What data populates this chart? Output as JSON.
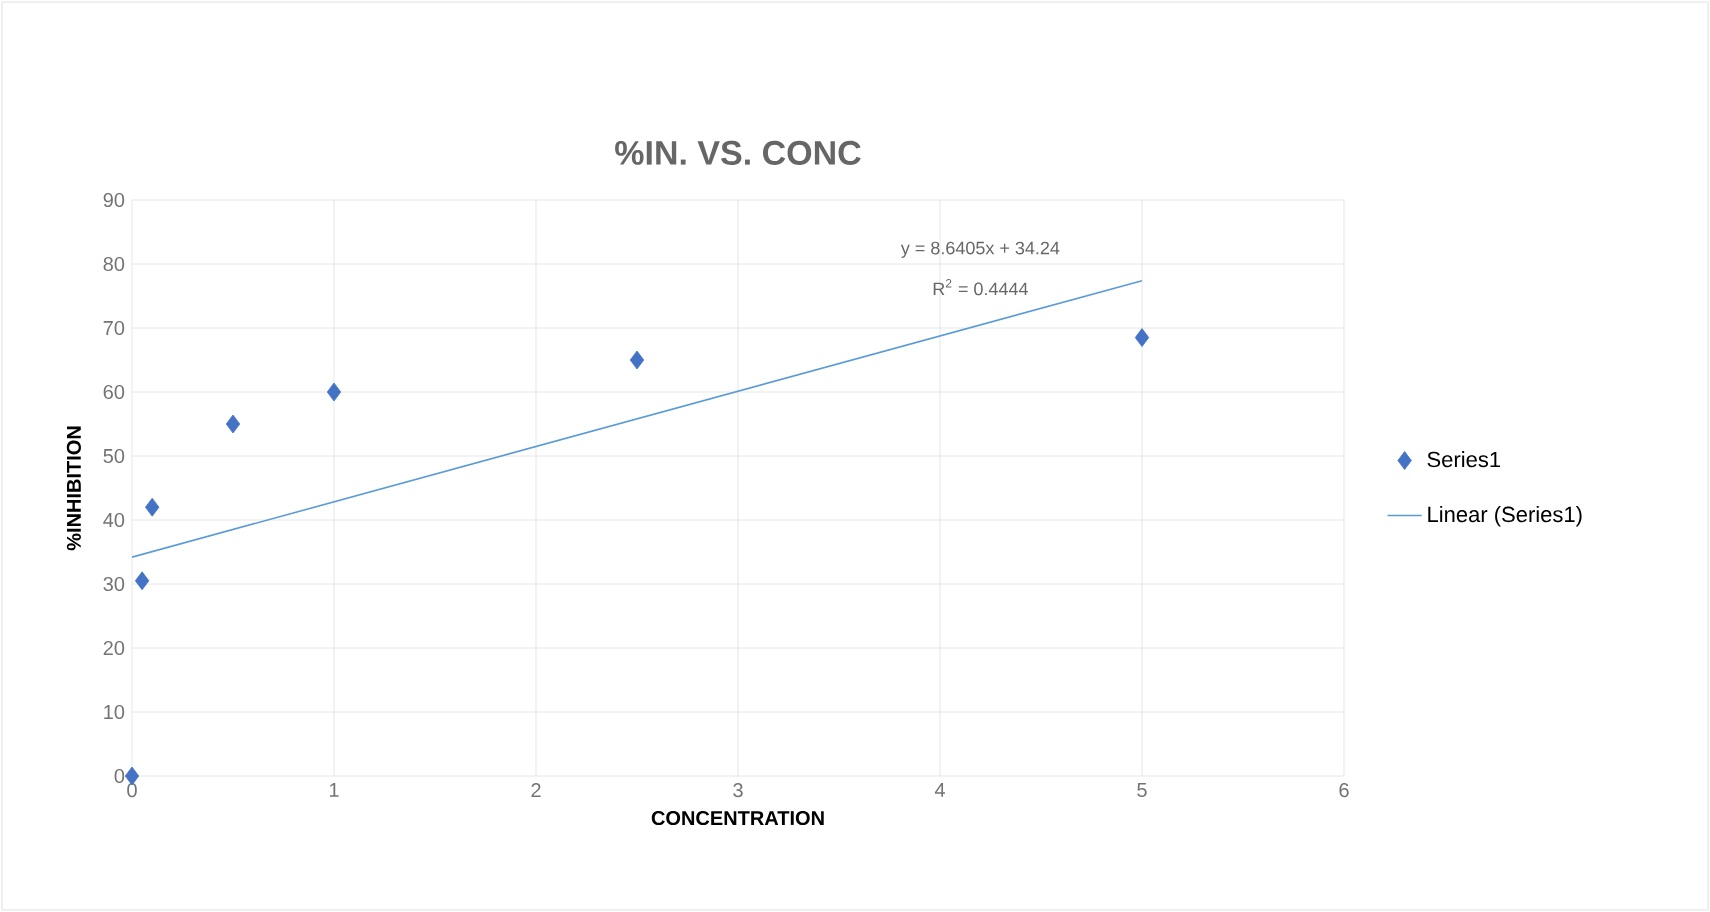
{
  "chart_data": {
    "type": "scatter",
    "title": "%IN. VS. CONC",
    "xlabel": "CONCENTRATION",
    "ylabel": "%INHIBITION",
    "series": [
      {
        "name": "Series1",
        "color": "#4472c4",
        "marker": "diamond",
        "x": [
          0,
          0.05,
          0.1,
          0.5,
          1,
          2.5,
          5
        ],
        "values": [
          0,
          30.5,
          42,
          55,
          60,
          65,
          68.5
        ]
      },
      {
        "name": "Linear (Series1)",
        "type": "line",
        "color": "#5b9bd5",
        "marker": "none",
        "line_style": "solid",
        "x": [
          0,
          5
        ],
        "values": [
          34.2,
          77.4
        ]
      }
    ],
    "annotations": [
      "y = 8.6405x + 34.24",
      "R$^{2}$ = 0.4444"
    ],
    "xlim": [
      0,
      6
    ],
    "xticks": [
      0,
      1,
      2,
      3,
      4,
      5,
      6
    ],
    "ylim": [
      0,
      90
    ],
    "yticks": [
      0,
      10,
      20,
      30,
      40,
      50,
      60,
      70,
      80,
      90
    ],
    "grid": true,
    "legend": "right"
  }
}
